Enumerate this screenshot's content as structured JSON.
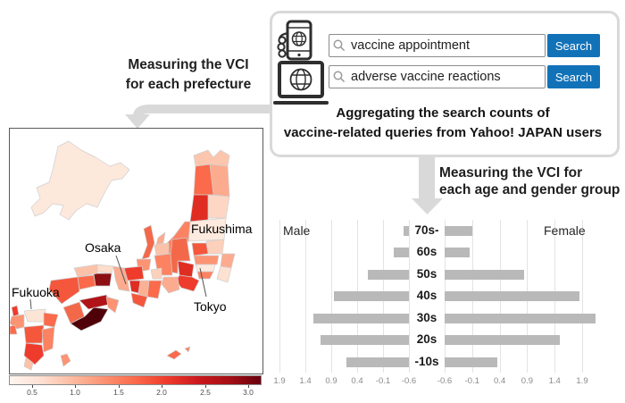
{
  "flow_box": {
    "search_rows": [
      {
        "query": "vaccine appointment",
        "button_label": "Search"
      },
      {
        "query": "adverse vaccine reactions",
        "button_label": "Search"
      }
    ],
    "caption_line1": "Aggregating the search counts of",
    "caption_line2": "vaccine-related queries from Yahoo! JAPAN users",
    "search_button_color": "#1272b8"
  },
  "annotations": {
    "left_arrow_label_line1": "Measuring the VCI",
    "left_arrow_label_line2": "for each prefecture",
    "right_arrow_label_line1": "Measuring the VCI for",
    "right_arrow_label_line2": "each age and gender group"
  },
  "map": {
    "labels": {
      "fukushima": "Fukushima",
      "osaka": "Osaka",
      "tokyo": "Tokyo",
      "fukuoka": "Fukuoka"
    },
    "colorbar": {
      "ticks": [
        "0.5",
        "1.0",
        "1.5",
        "2.0",
        "2.5",
        "3.0"
      ],
      "colormap": "Reds",
      "low_color": "#fff5f0",
      "high_color": "#67000d"
    }
  },
  "chart_data": {
    "type": "bar",
    "subtype": "population_pyramid",
    "title": "",
    "categories": [
      "70s-",
      "60s",
      "50s",
      "40s",
      "30s",
      "20s",
      "-10s"
    ],
    "series": [
      {
        "name": "Male",
        "side": "left",
        "values": [
          -0.5,
          -0.3,
          0.2,
          0.85,
          1.25,
          1.1,
          0.6
        ]
      },
      {
        "name": "Female",
        "side": "right",
        "values": [
          -0.1,
          -0.15,
          0.85,
          1.85,
          2.15,
          1.5,
          0.35
        ]
      }
    ],
    "axis": {
      "baseline": -0.6,
      "tick_step": 0.5,
      "range": [
        -0.6,
        1.9
      ],
      "male_ticks": [
        "1.9",
        "1.4",
        "0.9",
        "0.4",
        "-0.1",
        "-0.6"
      ],
      "female_ticks": [
        "-0.6",
        "-0.1",
        "0.4",
        "0.9",
        "1.4",
        "1.9"
      ]
    },
    "left_header": "Male",
    "right_header": "Female",
    "bar_color": "#b9b9b9",
    "grid": true,
    "legend_position": "none"
  }
}
